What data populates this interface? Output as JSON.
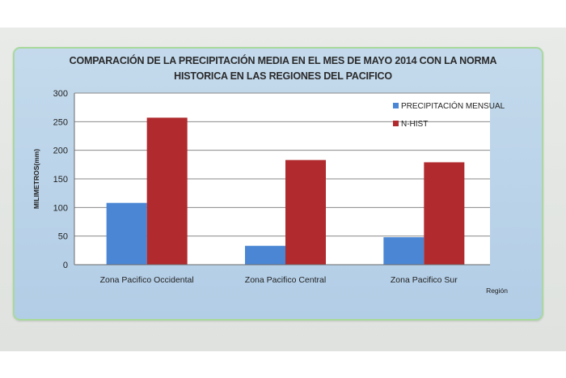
{
  "chart_data": {
    "type": "bar",
    "title": "COMPARACIÓN DE LA PRECIPITACIÓN MEDIA  EN EL MES DE MAYO 2014 CON LA NORMA HISTORICA EN LAS REGIONES DEL PACIFICO",
    "categories": [
      "Zona Pacifico Occidental",
      "Zona Pacifico Central",
      "Zona Pacifico Sur"
    ],
    "series": [
      {
        "name": "PRECIPITACIÓN MENSUAL",
        "values": [
          108,
          33,
          48
        ],
        "color": "#4a86d4"
      },
      {
        "name": "N-HIST",
        "values": [
          257,
          183,
          179
        ],
        "color": "#b02a2e"
      }
    ],
    "xlabel": "Región",
    "ylabel": "MILIMETROS(mm)",
    "ylim": [
      0,
      300
    ],
    "yticks": [
      0,
      50,
      100,
      150,
      200,
      250,
      300
    ],
    "grid": true,
    "legend": "top-right"
  }
}
